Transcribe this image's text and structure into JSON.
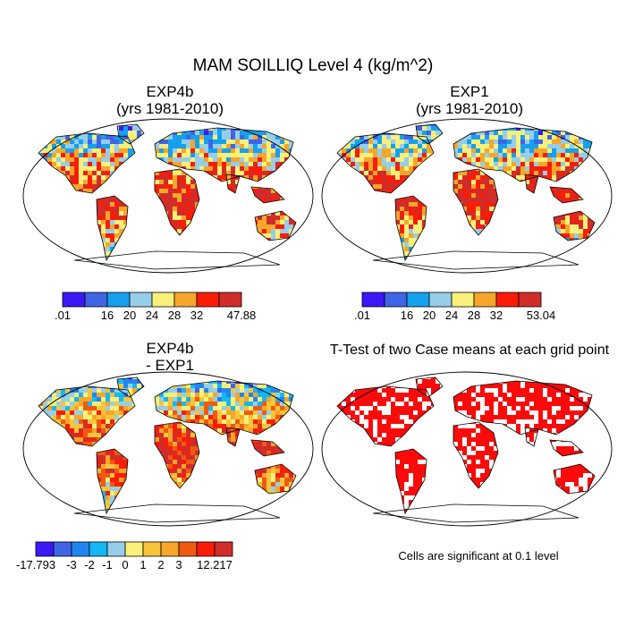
{
  "title": "MAM SOILLIQ Level 4 (kg/m^2)",
  "panels": [
    {
      "id": "exp4b",
      "title_line1": "EXP4b",
      "title_line2": "(yrs 1981-2010)"
    },
    {
      "id": "exp1",
      "title_line1": "EXP1",
      "title_line2": "(yrs 1981-2010)"
    },
    {
      "id": "diff",
      "title_line1": "EXP4b",
      "title_line2": "- EXP1"
    },
    {
      "id": "ttest",
      "title_line1": "T-Test of two Case means at each grid point",
      "title_line2": ""
    }
  ],
  "footnote": "Cells are significant at 0.1 level",
  "colorbars": [
    {
      "id": "cb-exp4b",
      "colors": [
        "#3b18f5",
        "#3f64e6",
        "#15a0f0",
        "#96cdea",
        "#f8f07a",
        "#f6a62a",
        "#fb1c07",
        "#d02c2a"
      ],
      "tick_labels": [
        ".01",
        "16",
        "20",
        "24",
        "28",
        "32",
        "47.88"
      ],
      "tick_positions": [
        0,
        2,
        3,
        4,
        5,
        6,
        8
      ]
    },
    {
      "id": "cb-exp1",
      "colors": [
        "#3b18f5",
        "#3f64e6",
        "#15a0f0",
        "#96cdea",
        "#f8f07a",
        "#f6a62a",
        "#fb1c07",
        "#d02c2a"
      ],
      "tick_labels": [
        ".01",
        "16",
        "20",
        "24",
        "28",
        "32",
        "53.04"
      ],
      "tick_positions": [
        0,
        2,
        3,
        4,
        5,
        6,
        8
      ]
    },
    {
      "id": "cb-diff",
      "colors": [
        "#3b18f5",
        "#3f64e6",
        "#1f86f0",
        "#15b7f5",
        "#96cdea",
        "#f8f07a",
        "#f6c53a",
        "#f6a62a",
        "#f05a10",
        "#fb1c07",
        "#d02c2a"
      ],
      "tick_labels": [
        "-17.793",
        "-3",
        "-2",
        "-1",
        "0",
        "1",
        "2",
        "3",
        "12.217"
      ],
      "tick_positions": [
        0,
        2,
        3,
        4,
        5,
        6,
        7,
        8,
        10
      ]
    }
  ],
  "chart_data": [
    {
      "type": "heatmap",
      "title": "EXP4b (yrs 1981-2010)",
      "variable": "SOILLIQ Level 4",
      "season": "MAM",
      "units": "kg/m^2",
      "range": [
        0.01,
        47.88
      ],
      "levels": [
        16,
        20,
        24,
        28,
        32
      ]
    },
    {
      "type": "heatmap",
      "title": "EXP1 (yrs 1981-2010)",
      "variable": "SOILLIQ Level 4",
      "season": "MAM",
      "units": "kg/m^2",
      "range": [
        0.01,
        53.04
      ],
      "levels": [
        16,
        20,
        24,
        28,
        32
      ]
    },
    {
      "type": "heatmap",
      "title": "EXP4b - EXP1",
      "variable": "SOILLIQ Level 4",
      "season": "MAM",
      "units": "kg/m^2",
      "range": [
        -17.793,
        12.217
      ],
      "levels": [
        -3,
        -2,
        -1,
        0,
        1,
        2,
        3
      ]
    },
    {
      "type": "heatmap",
      "title": "T-Test of two Case means at each grid point",
      "note": "Cells are significant at 0.1 level",
      "significance_level": 0.1
    }
  ]
}
